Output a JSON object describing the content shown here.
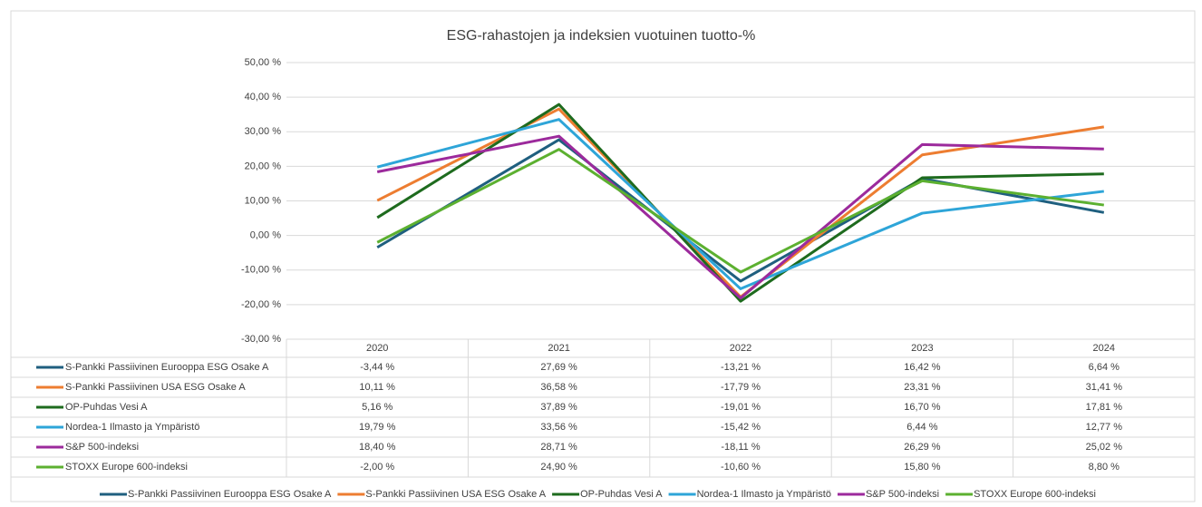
{
  "chart_data": {
    "type": "line",
    "title": "ESG-rahastojen ja indeksien vuotuinen tuotto-%",
    "categories": [
      "2020",
      "2021",
      "2022",
      "2023",
      "2024"
    ],
    "ylim": [
      -30,
      50
    ],
    "yticks": [
      {
        "value": -30,
        "label": "-30,00 %"
      },
      {
        "value": -20,
        "label": "-20,00 %"
      },
      {
        "value": -10,
        "label": "-10,00 %"
      },
      {
        "value": 0,
        "label": "0,00 %"
      },
      {
        "value": 10,
        "label": "10,00 %"
      },
      {
        "value": 20,
        "label": "20,00 %"
      },
      {
        "value": 30,
        "label": "30,00 %"
      },
      {
        "value": 40,
        "label": "40,00 %"
      },
      {
        "value": 50,
        "label": "50,00 %"
      }
    ],
    "grid": true,
    "legend": "bottom",
    "series": [
      {
        "name": "S-Pankki Passiivinen Eurooppa ESG Osake A",
        "color": "#1f5f7f",
        "values": [
          -3.44,
          27.69,
          -13.21,
          16.42,
          6.64
        ],
        "value_labels": [
          "-3,44 %",
          "27,69 %",
          "-13,21 %",
          "16,42 %",
          "6,64 %"
        ]
      },
      {
        "name": "S-Pankki Passiivinen USA ESG Osake A",
        "color": "#ed7d31",
        "values": [
          10.11,
          36.58,
          -17.79,
          23.31,
          31.41
        ],
        "value_labels": [
          "10,11 %",
          "36,58 %",
          "-17,79 %",
          "23,31 %",
          "31,41 %"
        ]
      },
      {
        "name": "OP-Puhdas Vesi A",
        "color": "#1e6b1e",
        "values": [
          5.16,
          37.89,
          -19.01,
          16.7,
          17.81
        ],
        "value_labels": [
          "5,16 %",
          "37,89 %",
          "-19,01 %",
          "16,70 %",
          "17,81 %"
        ]
      },
      {
        "name": "Nordea-1 Ilmasto ja Ympäristö",
        "color": "#2ea5d8",
        "values": [
          19.79,
          33.56,
          -15.42,
          6.44,
          12.77
        ],
        "value_labels": [
          "19,79 %",
          "33,56 %",
          "-15,42 %",
          "6,44 %",
          "12,77 %"
        ]
      },
      {
        "name": "S&P 500-indeksi",
        "color": "#9c2a9c",
        "values": [
          18.4,
          28.71,
          -18.11,
          26.29,
          25.02
        ],
        "value_labels": [
          "18,40 %",
          "28,71 %",
          "-18,11 %",
          "26,29 %",
          "25,02 %"
        ]
      },
      {
        "name": "STOXX Europe 600-indeksi",
        "color": "#5cb030",
        "values": [
          -2.0,
          24.9,
          -10.6,
          15.8,
          8.8
        ],
        "value_labels": [
          "-2,00 %",
          "24,90 %",
          "-10,60 %",
          "15,80 %",
          "8,80 %"
        ]
      }
    ]
  }
}
